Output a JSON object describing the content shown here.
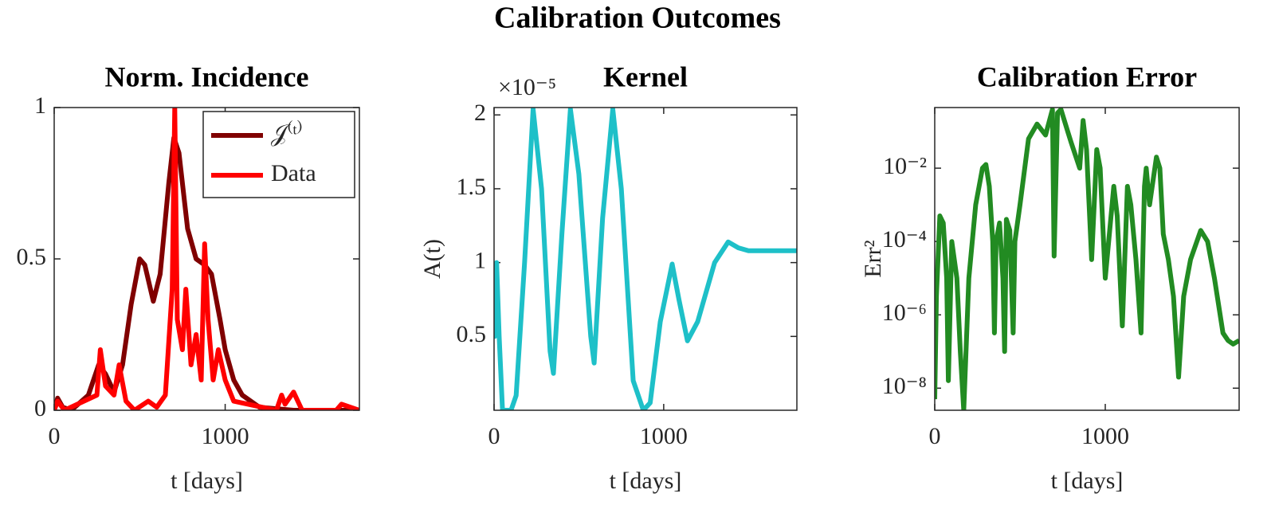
{
  "title": "Calibration Outcomes",
  "chart_data": [
    {
      "type": "line",
      "title": "Norm. Incidence",
      "xlabel": "t [days]",
      "xlim": [
        0,
        1785
      ],
      "xticks": [
        0,
        1000
      ],
      "ylim": [
        0,
        1
      ],
      "yticks": [
        0,
        0.5,
        1
      ],
      "legend": "upper right",
      "series": [
        {
          "name": "𝒥⁽ᵗ⁾",
          "color": "#800000",
          "x": [
            0,
            20,
            50,
            100,
            200,
            260,
            300,
            350,
            400,
            450,
            500,
            530,
            580,
            620,
            670,
            700,
            730,
            780,
            830,
            880,
            920,
            970,
            1000,
            1050,
            1100,
            1200,
            1400,
            1785
          ],
          "values": [
            0,
            0.04,
            0.01,
            0,
            0.05,
            0.15,
            0.12,
            0.06,
            0.15,
            0.35,
            0.5,
            0.48,
            0.36,
            0.45,
            0.75,
            0.9,
            0.85,
            0.6,
            0.5,
            0.48,
            0.45,
            0.3,
            0.2,
            0.1,
            0.05,
            0.01,
            0,
            0
          ]
        },
        {
          "name": "Data",
          "color": "#ff0000",
          "x": [
            0,
            20,
            60,
            250,
            270,
            300,
            350,
            380,
            420,
            470,
            550,
            600,
            650,
            690,
            705,
            720,
            750,
            770,
            800,
            830,
            860,
            880,
            900,
            930,
            960,
            1000,
            1050,
            1300,
            1330,
            1350,
            1400,
            1450,
            1650,
            1680,
            1785
          ],
          "values": [
            0,
            0.03,
            0,
            0.05,
            0.2,
            0.08,
            0.05,
            0.15,
            0.03,
            0,
            0.03,
            0.01,
            0.05,
            0.4,
            1.0,
            0.3,
            0.2,
            0.4,
            0.15,
            0.25,
            0.1,
            0.55,
            0.3,
            0.1,
            0.2,
            0.1,
            0.03,
            0,
            0.05,
            0.02,
            0.06,
            0,
            0,
            0.02,
            0
          ]
        }
      ]
    },
    {
      "type": "line",
      "title": "Kernel",
      "xlabel": "t [days]",
      "ylabel": "A(t)",
      "y_multiplier": "×10⁻⁵",
      "xlim": [
        0,
        1785
      ],
      "xticks": [
        0,
        1000
      ],
      "ylim": [
        0,
        2.05
      ],
      "yticks": [
        0.5,
        1,
        1.5,
        2
      ],
      "color": "#1ec0c8",
      "x": [
        0,
        5,
        15,
        30,
        50,
        100,
        130,
        180,
        230,
        280,
        330,
        350,
        400,
        450,
        500,
        570,
        590,
        640,
        700,
        750,
        820,
        880,
        920,
        980,
        1050,
        1090,
        1140,
        1200,
        1300,
        1380,
        1440,
        1500,
        1785
      ],
      "values": [
        0.9,
        0.5,
        1.0,
        0.5,
        0,
        0,
        0.1,
        1.0,
        2.04,
        1.5,
        0.4,
        0.25,
        1.2,
        2.04,
        1.6,
        0.5,
        0.32,
        1.3,
        2.04,
        1.5,
        0.2,
        0,
        0.05,
        0.6,
        0.99,
        0.75,
        0.47,
        0.6,
        1.0,
        1.14,
        1.1,
        1.08,
        1.08
      ]
    },
    {
      "type": "line",
      "title": "Calibration Error",
      "xlabel": "t [days]",
      "ylabel": "Err²",
      "yscale": "log",
      "xlim": [
        0,
        1785
      ],
      "xticks": [
        0,
        1000
      ],
      "ylim": [
        2.5e-09,
        0.45
      ],
      "yticks": [
        {
          "value": 1e-08,
          "label": "10⁻⁸"
        },
        {
          "value": 1e-06,
          "label": "10⁻⁶"
        },
        {
          "value": 0.0001,
          "label": "10⁻⁴"
        },
        {
          "value": 0.01,
          "label": "10⁻²"
        }
      ],
      "color": "#228b22",
      "x": [
        0,
        10,
        30,
        50,
        70,
        80,
        100,
        130,
        150,
        170,
        200,
        240,
        280,
        300,
        320,
        340,
        350,
        360,
        380,
        400,
        410,
        420,
        440,
        460,
        470,
        500,
        550,
        600,
        650,
        690,
        700,
        720,
        740,
        780,
        800,
        850,
        870,
        890,
        920,
        950,
        970,
        980,
        1000,
        1050,
        1070,
        1100,
        1130,
        1150,
        1180,
        1210,
        1230,
        1240,
        1260,
        1300,
        1320,
        1340,
        1370,
        1400,
        1430,
        1460,
        1500,
        1560,
        1600,
        1640,
        1690,
        1720,
        1750,
        1785
      ],
      "values": [
        5e-09,
        3.2e-06,
        0.0005,
        0.00032,
        1e-05,
        1.6e-08,
        0.0001,
        1e-05,
        1e-07,
        2.5e-09,
        1e-05,
        0.001,
        0.01,
        0.0126,
        0.0032,
        0.0001,
        3.2e-07,
        0.0001,
        0.00032,
        1e-05,
        1e-07,
        0.0004,
        0.0002,
        3.2e-07,
        0.0001,
        0.001,
        0.063,
        0.16,
        0.08,
        0.4,
        4e-05,
        0.32,
        0.4,
        0.1,
        0.05,
        0.01,
        0.2,
        0.032,
        3.2e-05,
        0.032,
        0.01,
        0.001,
        1e-05,
        0.0032,
        0.0005,
        5e-07,
        0.0032,
        0.001,
        3.2e-05,
        3.2e-07,
        0.0032,
        0.01,
        0.001,
        0.02,
        0.01,
        0.00016,
        3.2e-05,
        3.2e-06,
        2e-08,
        3.2e-06,
        3.2e-05,
        0.0002,
        0.0001,
        1e-05,
        3.2e-07,
        2e-07,
        1.6e-07,
        2e-07
      ]
    }
  ]
}
